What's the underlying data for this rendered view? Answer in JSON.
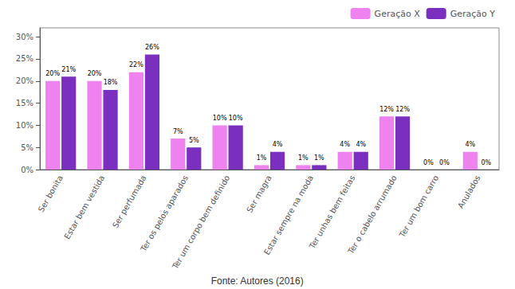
{
  "chart_data": {
    "type": "bar",
    "categories": [
      "Ser bonita",
      "Estar bem vestida",
      "Ser perfumada",
      "Ter os pelos aparados",
      "Ter um corpo bem definido",
      "Ser magra",
      "Estar sempre na moda",
      "Ter unhas bem feitas",
      "Ter o cabelo arrumado",
      "Ter um bom carro",
      "Anulados"
    ],
    "series": [
      {
        "name": "Geração X",
        "color": "#EE82EE",
        "values": [
          20,
          20,
          22,
          7,
          10,
          1,
          1,
          4,
          12,
          0,
          4
        ],
        "value_labels": [
          "20%",
          "20%",
          "22%",
          "7%",
          "10%",
          "1%",
          "1%",
          "4%",
          "12%",
          "0%",
          "4%"
        ]
      },
      {
        "name": "Geração Y",
        "color": "#7B2FBE",
        "values": [
          21,
          18,
          26,
          5,
          10,
          4,
          1,
          4,
          12,
          0,
          0
        ],
        "value_labels": [
          "21%",
          "18%",
          "26%",
          "5%",
          "10%",
          "4%",
          "1%",
          "4%",
          "12%",
          "0%",
          "0%"
        ]
      }
    ],
    "ylim": [
      0,
      32
    ],
    "yticks": [
      {
        "value": 0,
        "label": "0%"
      },
      {
        "value": 5,
        "label": "5%"
      },
      {
        "value": 10,
        "label": "10%"
      },
      {
        "value": 15,
        "label": "15%"
      },
      {
        "value": 20,
        "label": "20%"
      },
      {
        "value": 25,
        "label": "25%"
      },
      {
        "value": 30,
        "label": "30%"
      }
    ],
    "grid": false,
    "legend": "upper right",
    "data_labels": true,
    "annotations": [
      "Fonte: Autores (2016)"
    ]
  }
}
